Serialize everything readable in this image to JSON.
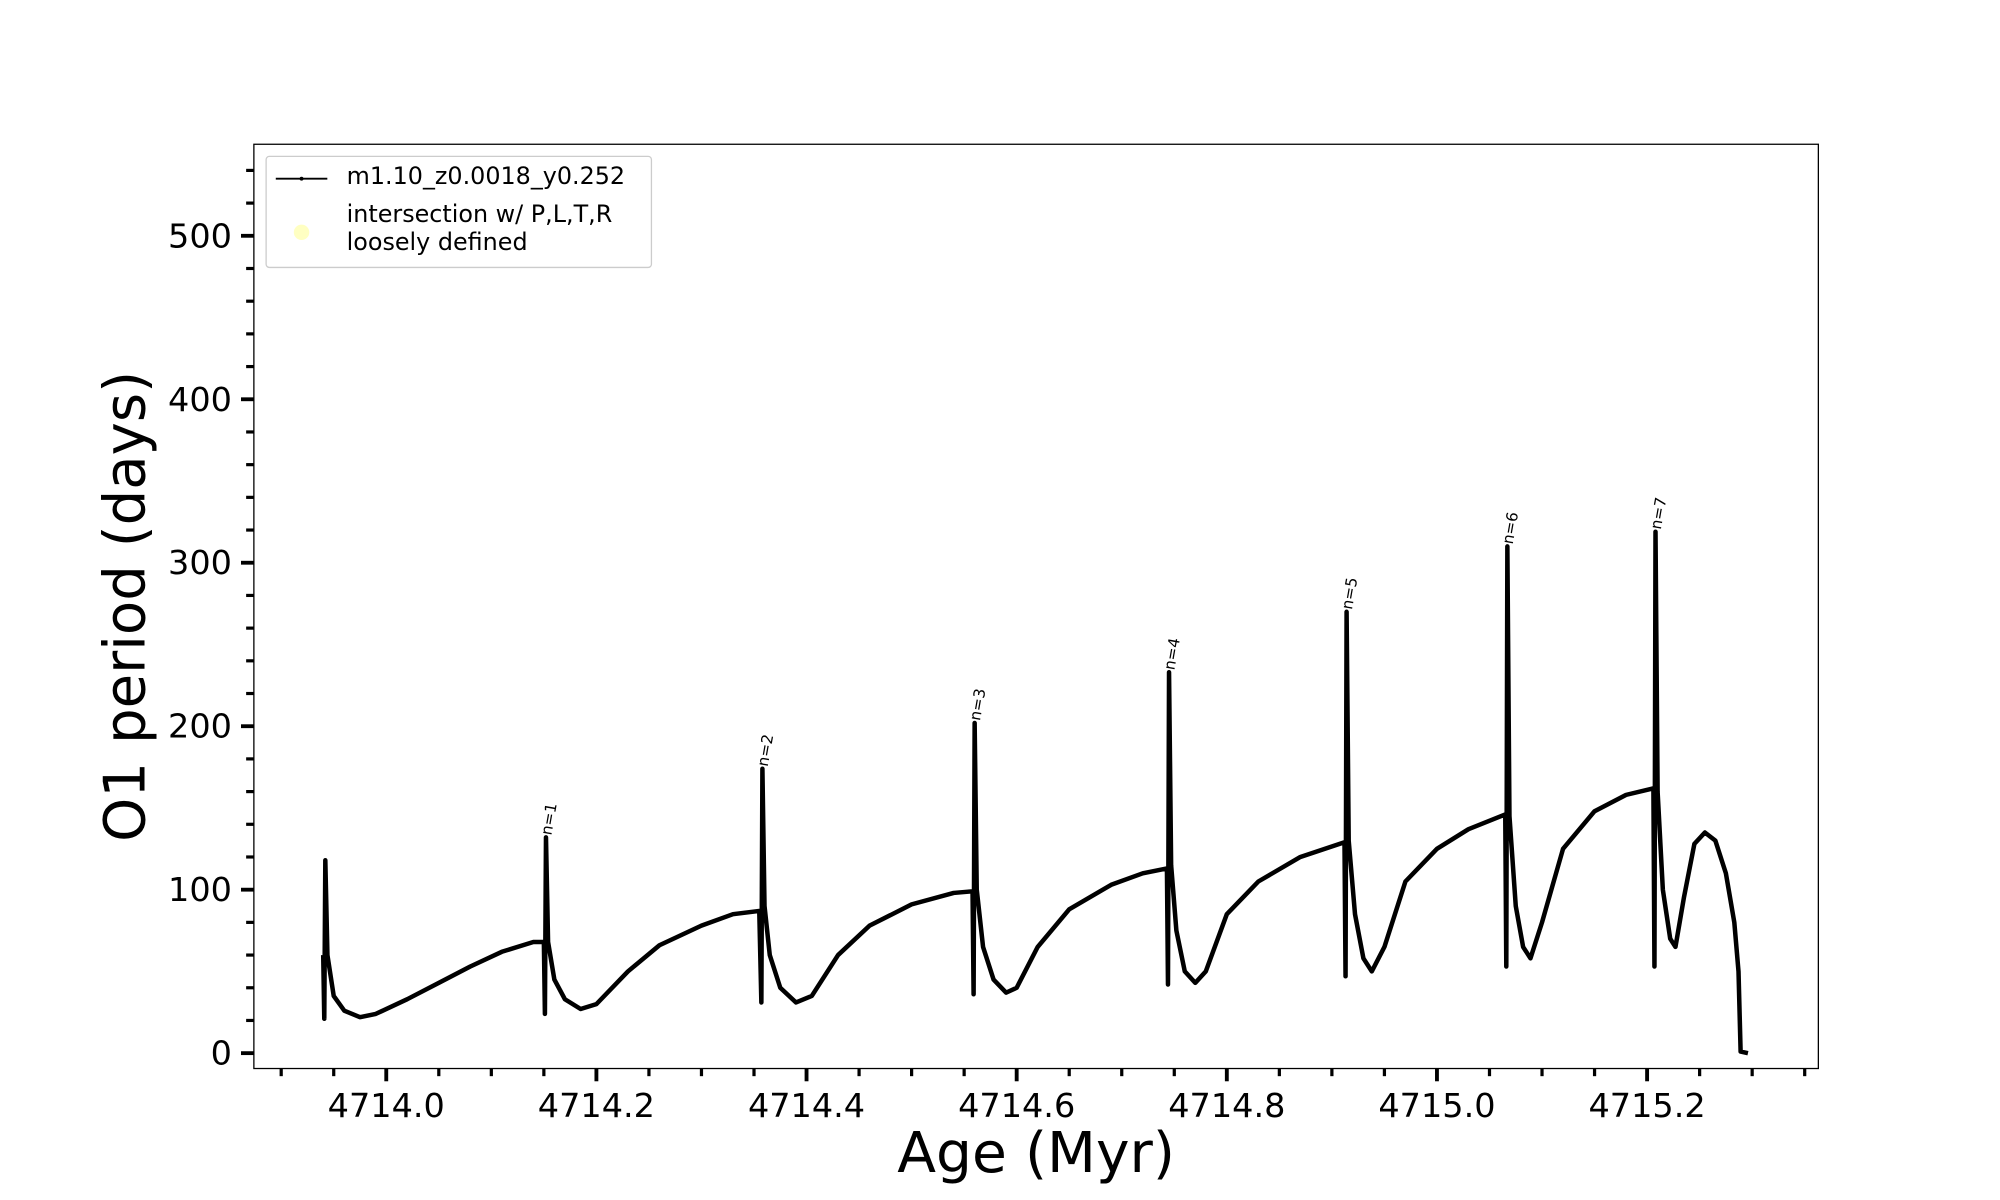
{
  "chart_data": {
    "type": "line",
    "xlabel": "Age (Myr)",
    "ylabel": "O1 period (days)",
    "xlim": [
      4713.874,
      4715.363
    ],
    "ylim": [
      -9.4,
      556
    ],
    "xticks": [
      {
        "value": 4714,
        "label": "4714.0"
      },
      4714.2,
      4714.4,
      4714.6,
      4714.8,
      {
        "value": 4715,
        "label": "4715.0"
      },
      4715.2
    ],
    "xminorticks": [
      4713.9,
      4713.95,
      4714.05,
      4714.1,
      4714.15,
      4714.25,
      4714.3,
      4714.35,
      4714.45,
      4714.5,
      4714.55,
      4714.65,
      4714.7,
      4714.75,
      4714.85,
      4714.9,
      4714.95,
      4715.05,
      4715.1,
      4715.15,
      4715.25,
      4715.3,
      4715.35
    ],
    "yticks": [
      0,
      100,
      200,
      300,
      400,
      500
    ],
    "yminorticks": [
      20,
      40,
      60,
      80,
      120,
      140,
      160,
      180,
      220,
      240,
      260,
      280,
      320,
      340,
      360,
      380,
      420,
      440,
      460,
      480,
      520,
      540
    ],
    "legend": "upper left",
    "grid": false,
    "series": [
      {
        "name": "m1.10_z0.0018_y0.252",
        "color": "#000000",
        "x": [
          4713.94,
          4713.941,
          4713.942,
          4713.944,
          4713.95,
          4713.96,
          4713.975,
          4713.99,
          4714.02,
          4714.05,
          4714.08,
          4714.11,
          4714.14,
          4714.15,
          4714.151,
          4714.152,
          4714.154,
          4714.16,
          4714.17,
          4714.185,
          4714.2,
          4714.23,
          4714.26,
          4714.3,
          4714.33,
          4714.355,
          4714.357,
          4714.358,
          4714.36,
          4714.365,
          4714.375,
          4714.39,
          4714.405,
          4714.43,
          4714.46,
          4714.5,
          4714.54,
          4714.558,
          4714.559,
          4714.56,
          4714.562,
          4714.568,
          4714.578,
          4714.59,
          4714.6,
          4714.62,
          4714.65,
          4714.69,
          4714.72,
          4714.743,
          4714.744,
          4714.745,
          4714.747,
          4714.752,
          4714.76,
          4714.77,
          4714.78,
          4714.8,
          4714.83,
          4714.87,
          4714.912,
          4714.913,
          4714.914,
          4714.916,
          4714.922,
          4714.93,
          4714.938,
          4714.95,
          4714.97,
          4715.0,
          4715.03,
          4715.065,
          4715.066,
          4715.067,
          4715.069,
          4715.075,
          4715.082,
          4715.089,
          4715.1,
          4715.12,
          4715.15,
          4715.18,
          4715.206,
          4715.207,
          4715.208,
          4715.21,
          4715.215,
          4715.222,
          4715.227,
          4715.235,
          4715.245,
          4715.255,
          4715.265,
          4715.275,
          4715.283,
          4715.287,
          4715.289,
          4715.296
        ],
        "values": [
          60,
          21,
          118,
          60,
          35,
          26,
          22,
          24,
          33,
          43,
          53,
          62,
          68,
          68,
          24,
          132,
          68,
          45,
          33,
          27,
          30,
          50,
          66,
          78,
          85,
          87,
          31,
          174,
          90,
          60,
          40,
          31,
          35,
          60,
          78,
          91,
          98,
          99,
          36,
          202,
          100,
          65,
          45,
          37,
          40,
          65,
          88,
          103,
          110,
          113,
          42,
          233,
          115,
          75,
          50,
          43,
          50,
          85,
          105,
          120,
          129,
          47,
          270,
          130,
          85,
          58,
          50,
          65,
          105,
          125,
          137,
          146,
          53,
          310,
          145,
          90,
          65,
          58,
          80,
          125,
          148,
          158,
          162,
          53,
          319,
          160,
          100,
          70,
          65,
          95,
          128,
          135,
          130,
          110,
          80,
          50,
          1,
          0
        ]
      },
      {
        "name": "intersection w/ P,L,T,R\nloosely defined",
        "color": "#ffffb3",
        "x": [],
        "values": []
      }
    ],
    "annotations": [
      {
        "text": "n=1",
        "x": 4714.157,
        "y": 133
      },
      {
        "text": "n=2",
        "x": 4714.363,
        "y": 175
      },
      {
        "text": "n=3",
        "x": 4714.565,
        "y": 203
      },
      {
        "text": "n=4",
        "x": 4714.75,
        "y": 234
      },
      {
        "text": "n=5",
        "x": 4714.919,
        "y": 271
      },
      {
        "text": "n=6",
        "x": 4715.072,
        "y": 311
      },
      {
        "text": "n=7",
        "x": 4715.213,
        "y": 320
      }
    ]
  }
}
